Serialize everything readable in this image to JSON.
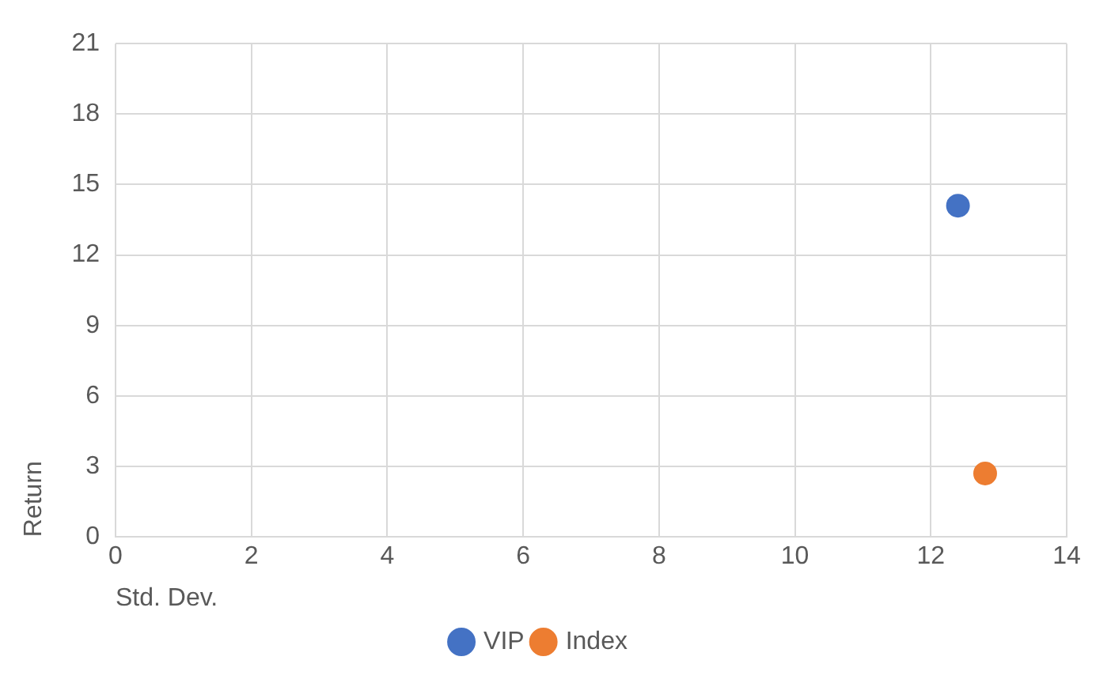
{
  "chart_data": {
    "type": "scatter",
    "xlabel": "Std. Dev.",
    "ylabel": "Return",
    "series": [
      {
        "name": "VIP",
        "color": "#4472c4",
        "x": [
          12.4
        ],
        "values": [
          14.1
        ]
      },
      {
        "name": "Index",
        "color": "#ed7d31",
        "x": [
          12.8
        ],
        "values": [
          2.7
        ]
      }
    ],
    "xlim": [
      0,
      14
    ],
    "xticks": [
      0,
      2,
      4,
      6,
      8,
      10,
      12,
      14
    ],
    "ylim": [
      0,
      21
    ],
    "yticks": [
      0,
      3,
      6,
      9,
      12,
      15,
      18,
      21
    ],
    "grid": true,
    "legend": "bottom",
    "marker": "circle"
  }
}
